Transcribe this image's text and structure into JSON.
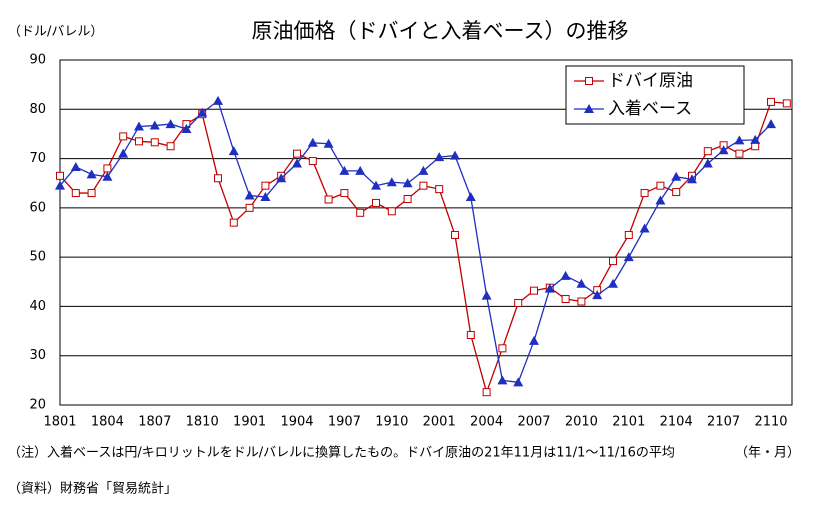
{
  "chart_data": {
    "type": "line",
    "title": "原油価格（ドバイと入着ベース）の推移",
    "y_label": "（ドル/バレル）",
    "x_label": "（年・月）",
    "note": "（注）入着ベースは円/キロリットルをドル/バレルに換算したもの。ドバイ原油の21年11月は11/1～11/16の平均",
    "source": "（資料）財務省「貿易統計」",
    "categories": [
      "1801",
      null,
      null,
      "1804",
      null,
      null,
      "1807",
      null,
      null,
      "1810",
      null,
      null,
      "1901",
      null,
      null,
      "1904",
      null,
      null,
      "1907",
      null,
      null,
      "1910",
      null,
      null,
      "2001",
      null,
      null,
      "2004",
      null,
      null,
      "2007",
      null,
      null,
      "2010",
      null,
      null,
      "2101",
      null,
      null,
      "2104",
      null,
      null,
      "2107",
      null,
      null,
      "2110",
      null
    ],
    "series": [
      {
        "name": "ドバイ原油",
        "color": "#c00000",
        "marker": "square",
        "values": [
          66.5,
          63,
          63,
          68,
          74.5,
          73.5,
          73.3,
          72.5,
          77,
          79,
          66,
          57,
          60,
          64.5,
          66.5,
          71,
          69.5,
          61.7,
          63,
          59,
          61,
          59.3,
          61.8,
          64.5,
          63.8,
          54.5,
          34.2,
          22.6,
          31.5,
          40.7,
          43.2,
          43.8,
          41.5,
          41,
          43.3,
          49.2,
          54.5,
          63,
          64.5,
          63.2,
          66.5,
          71.5,
          72.7,
          71,
          72.5,
          81.5,
          81.2
        ]
      },
      {
        "name": "入着ベース",
        "color": "#1f2fbf",
        "marker": "triangle",
        "values": [
          64.5,
          68.3,
          66.8,
          66.3,
          71,
          76.5,
          76.7,
          77,
          76,
          79.3,
          81.7,
          71.5,
          62.5,
          62.2,
          66,
          69,
          73.2,
          73,
          67.5,
          67.5,
          64.5,
          65.2,
          65,
          67.5,
          70.3,
          70.6,
          62.2,
          42.2,
          25,
          24.6,
          33,
          43.6,
          46.2,
          44.6,
          42.3,
          44.6,
          50,
          55.8,
          61.5,
          66.3,
          65.8,
          69,
          71.7,
          73.7,
          73.8,
          77,
          null
        ]
      }
    ],
    "ylim": [
      20,
      90
    ],
    "yticks": [
      20,
      30,
      40,
      50,
      60,
      70,
      80,
      90
    ],
    "grid": true,
    "legend": "upper right"
  }
}
